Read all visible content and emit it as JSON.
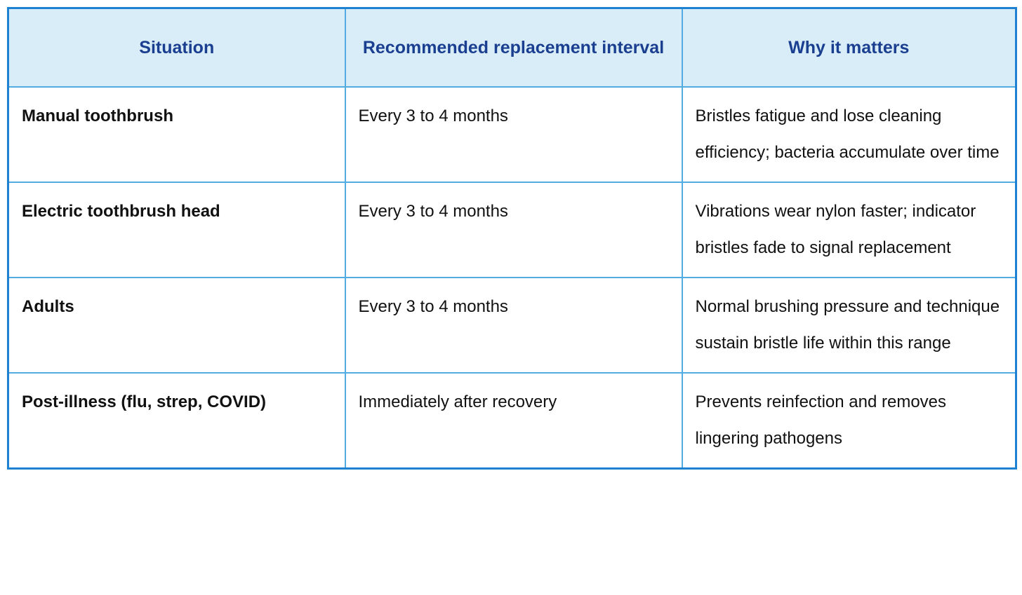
{
  "table": {
    "header": [
      "Situation",
      "Recommended replacement interval",
      "Why it matters"
    ],
    "rows": [
      [
        "Manual toothbrush",
        "Every 3 to 4 months",
        "Bristles fatigue and lose cleaning efficiency; bacteria accumulate over time"
      ],
      [
        "Electric toothbrush head",
        "Every 3 to 4 months",
        "Vibrations wear nylon faster; indicator bristles fade to signal replacement"
      ],
      [
        "Adults",
        "Every 3 to 4 months",
        "Normal brushing pressure and technique sustain bristle life within this range"
      ],
      [
        "Post-illness (flu, strep, COVID)",
        "Immediately after recovery",
        "Prevents reinfection and removes lingering pathogens"
      ]
    ]
  },
  "chart_data": {
    "type": "table",
    "title": "",
    "columns": [
      "Situation",
      "Recommended replacement interval",
      "Why it matters"
    ],
    "rows": [
      {
        "situation": "Manual toothbrush",
        "recommended_replacement_interval": "Every 3 to 4 months",
        "why_it_matters": "Bristles fatigue and lose cleaning efficiency; bacteria accumulate over time"
      },
      {
        "situation": "Electric toothbrush head",
        "recommended_replacement_interval": "Every 3 to 4 months",
        "why_it_matters": "Vibrations wear nylon faster; indicator bristles fade to signal replacement"
      },
      {
        "situation": "Adults",
        "recommended_replacement_interval": "Every 3 to 4 months",
        "why_it_matters": "Normal brushing pressure and technique sustain bristle life within this range"
      },
      {
        "situation": "Post-illness (flu, strep, COVID)",
        "recommended_replacement_interval": "Immediately after recovery",
        "why_it_matters": "Prevents reinfection and removes lingering pathogens"
      }
    ]
  },
  "colors": {
    "header_bg": "#d9edf8",
    "header_text": "#1b3f90",
    "body_text": "#111111",
    "inner_border": "#52ace2",
    "outer_border": "#1e81d2",
    "row_bg": "#ffffff"
  }
}
